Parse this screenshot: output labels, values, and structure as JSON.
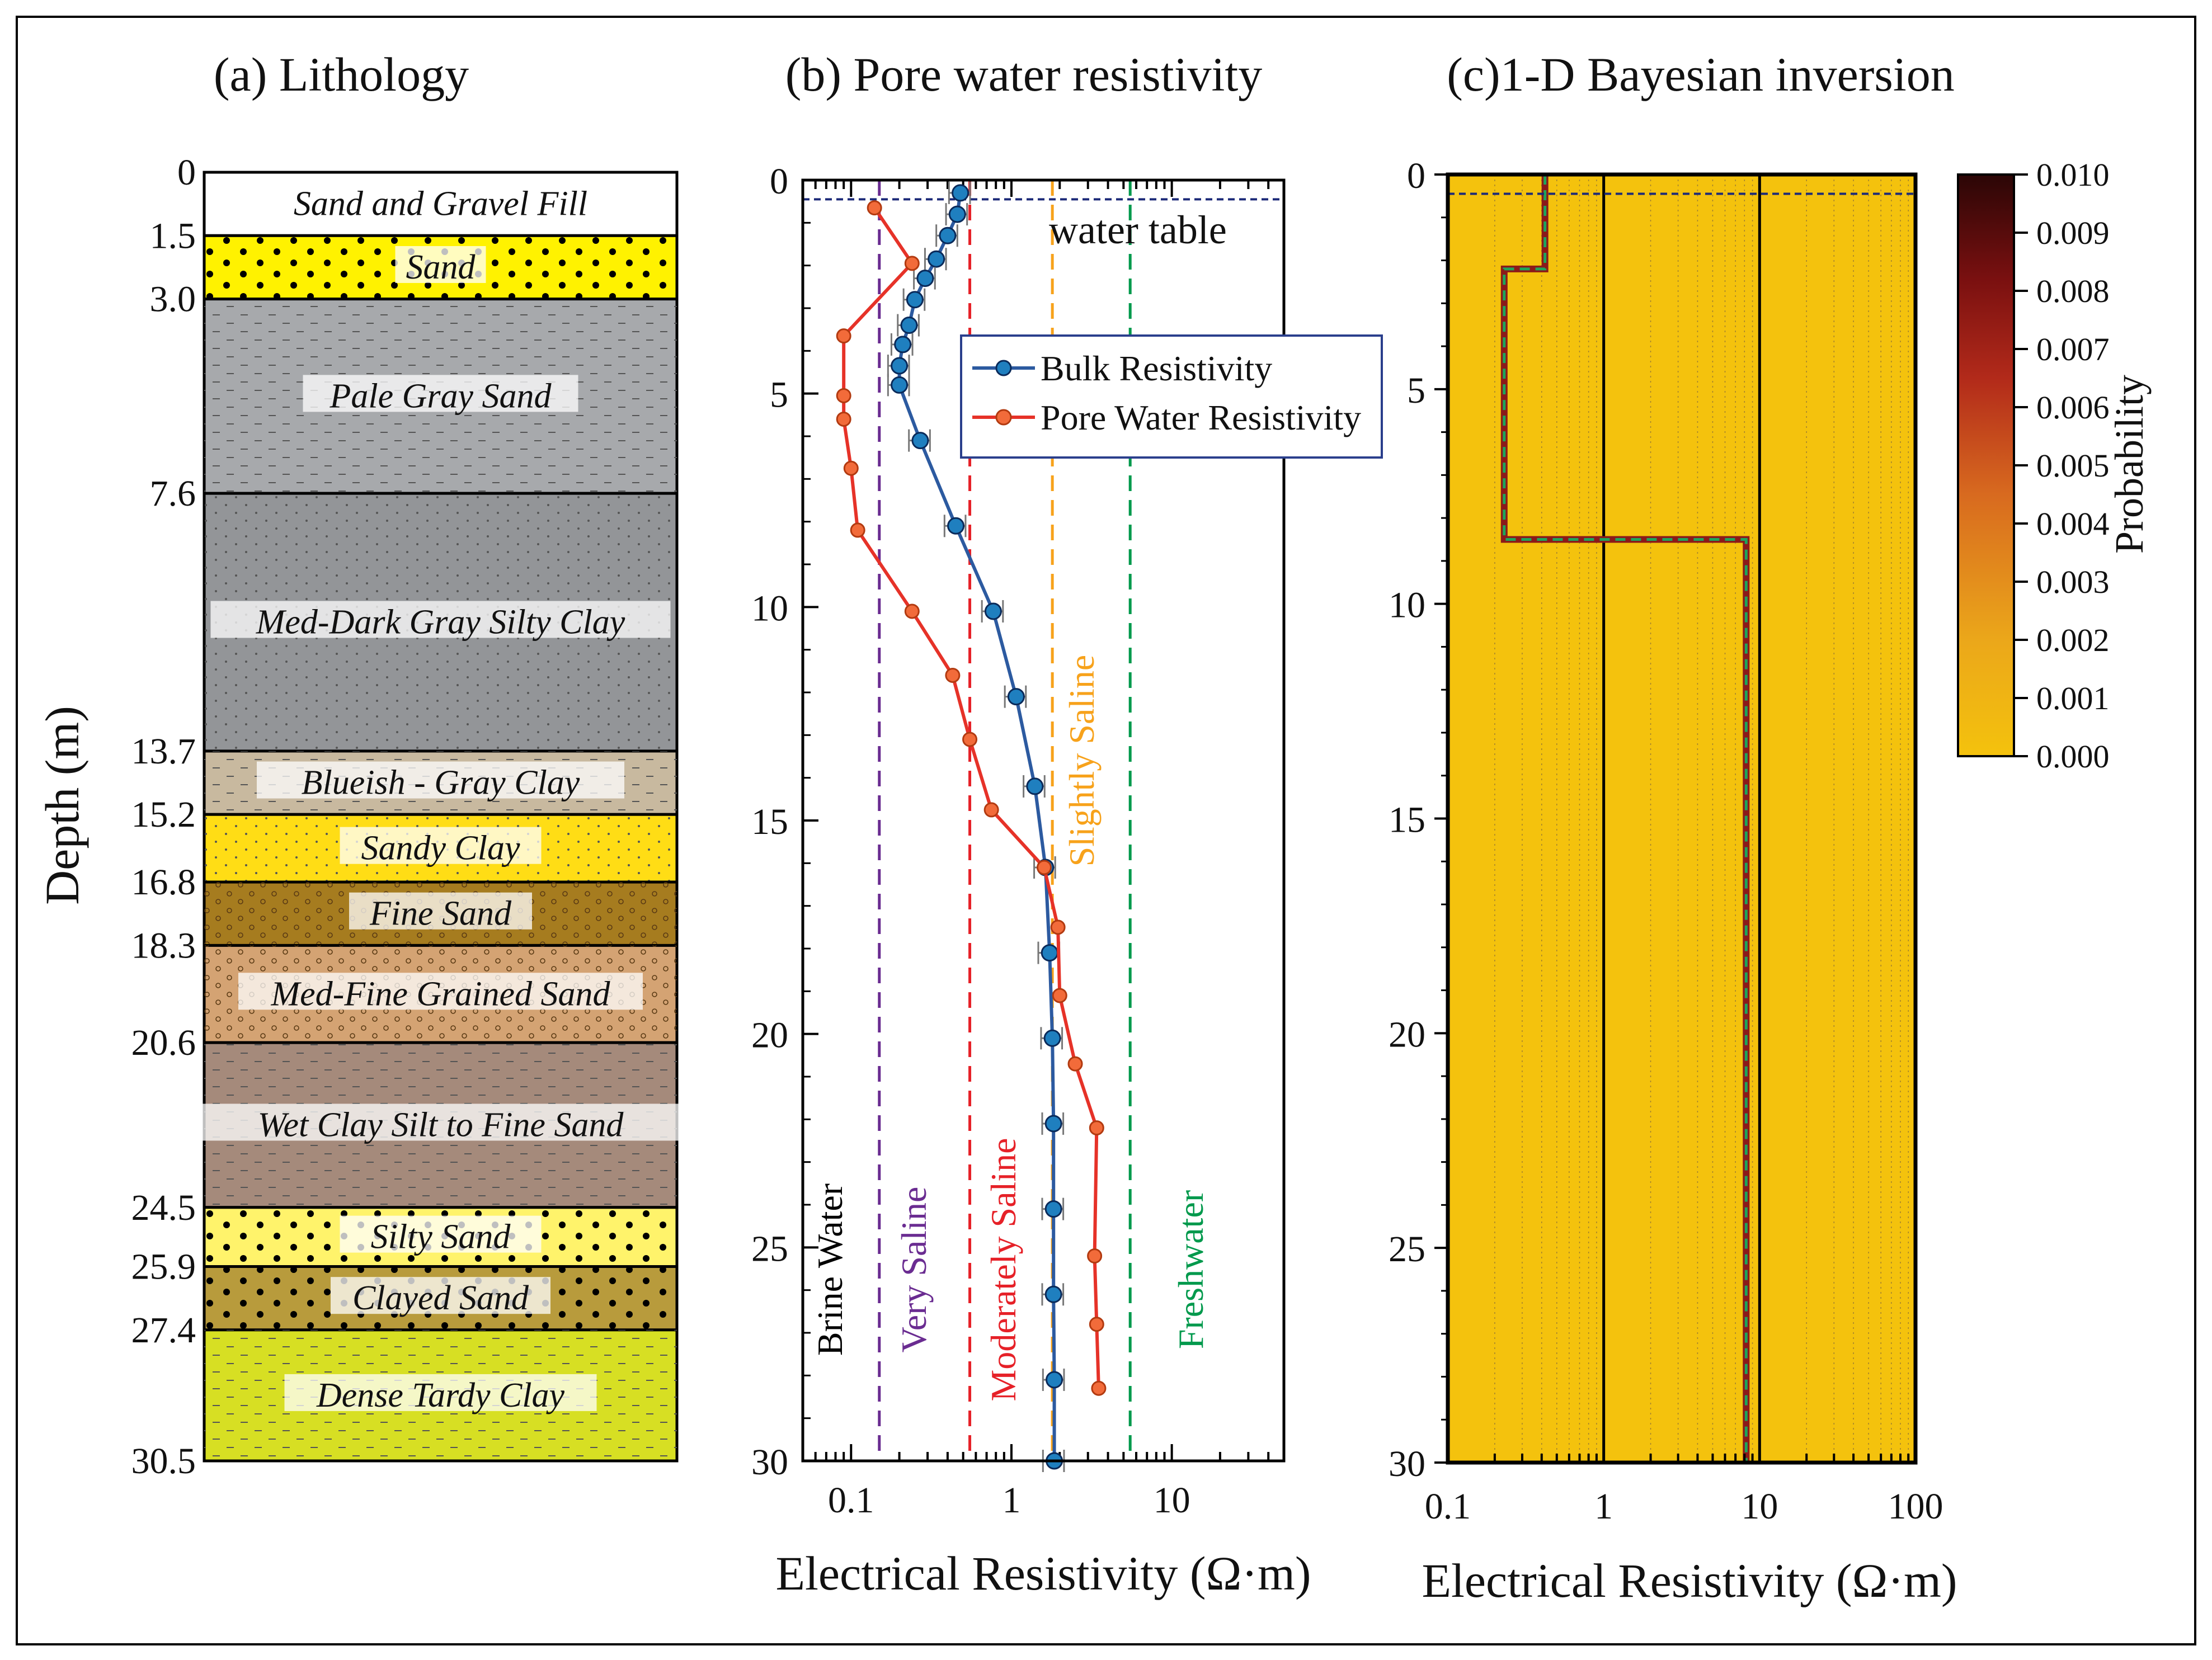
{
  "chart_data": [
    {
      "type": "lithology-column",
      "title": "(a) Lithology",
      "ylabel": "Depth (m)",
      "ylim": [
        0,
        30.5
      ],
      "depth_ticks": [
        "0",
        "1.5",
        "3.0",
        "7.6",
        "13.7",
        "15.2",
        "16.8",
        "18.3",
        "20.6",
        "24.5",
        "25.9",
        "27.4",
        "30.5"
      ],
      "layers": [
        {
          "top": 0,
          "bottom": 1.5,
          "name": "Sand and Gravel Fill",
          "color": "#ffffff",
          "pattern": "none"
        },
        {
          "top": 1.5,
          "bottom": 3.0,
          "name": "Sand",
          "color": "#fff200",
          "pattern": "bigdots"
        },
        {
          "top": 3.0,
          "bottom": 7.6,
          "name": "Pale Gray Sand",
          "color": "#a7a9ac",
          "pattern": "dash"
        },
        {
          "top": 7.6,
          "bottom": 13.7,
          "name": "Med-Dark Gray Silty Clay",
          "color": "#939598",
          "pattern": "dots"
        },
        {
          "top": 13.7,
          "bottom": 15.2,
          "name": "Blueish - Gray Clay",
          "color": "#c8b99f",
          "pattern": "dash"
        },
        {
          "top": 15.2,
          "bottom": 16.8,
          "name": "Sandy Clay",
          "color": "#ffdd15",
          "pattern": "dots"
        },
        {
          "top": 16.8,
          "bottom": 18.3,
          "name": "Fine Sand",
          "color": "#a67c1f",
          "pattern": "circles"
        },
        {
          "top": 18.3,
          "bottom": 20.6,
          "name": "Med-Fine Grained Sand",
          "color": "#d4a373",
          "pattern": "circles"
        },
        {
          "top": 20.6,
          "bottom": 24.5,
          "name": "Wet Clay Silt to Fine Sand",
          "color": "#a58a7b",
          "pattern": "dash"
        },
        {
          "top": 24.5,
          "bottom": 25.9,
          "name": "Silty Sand",
          "color": "#fff36b",
          "pattern": "bigdots"
        },
        {
          "top": 25.9,
          "bottom": 27.4,
          "name": "Clayed Sand",
          "color": "#b89b3c",
          "pattern": "bigdots"
        },
        {
          "top": 27.4,
          "bottom": 30.5,
          "name": "Dense Tardy Clay",
          "color": "#d7df23",
          "pattern": "dash"
        }
      ]
    },
    {
      "type": "line",
      "title": "(b) Pore water resistivity",
      "xlabel": "Electrical Resistivity (Ω·m)",
      "xscale": "log",
      "xlim": [
        0.05,
        50
      ],
      "ylim": [
        0,
        30
      ],
      "y_inverted": true,
      "x_ticks": [
        0.1,
        1,
        10
      ],
      "x_tick_labels": [
        "0.1",
        "1",
        "10"
      ],
      "y_ticks": [
        0,
        5,
        10,
        15,
        20,
        25,
        30
      ],
      "y_tick_labels": [
        "0",
        "5",
        "10",
        "15",
        "20",
        "25",
        "30"
      ],
      "water_table_depth": 0.45,
      "water_table_label": "water table",
      "legend": [
        "Bulk Resistivity",
        "Pore Water Resistivity"
      ],
      "series": [
        {
          "name": "Bulk Resistivity",
          "color": "#2c5aa0",
          "marker_color": "#1f7fbf",
          "depth": [
            0.3,
            0.8,
            1.3,
            1.85,
            2.3,
            2.8,
            3.4,
            3.85,
            4.35,
            4.8,
            6.1,
            8.1,
            10.1,
            12.1,
            14.2,
            16.1,
            18.1,
            20.1,
            22.1,
            24.1,
            26.1,
            28.1,
            30.0
          ],
          "x": [
            0.48,
            0.46,
            0.4,
            0.34,
            0.29,
            0.25,
            0.23,
            0.21,
            0.2,
            0.2,
            0.27,
            0.45,
            0.77,
            1.07,
            1.4,
            1.63,
            1.73,
            1.8,
            1.83,
            1.83,
            1.83,
            1.85,
            1.85
          ],
          "xerr_frac": 0.15
        },
        {
          "name": "Pore Water Resistivity",
          "color": "#e63228",
          "marker_color": "#f26b3a",
          "depth": [
            0.65,
            1.95,
            3.65,
            5.05,
            5.6,
            6.75,
            8.2,
            10.1,
            11.6,
            13.1,
            14.75,
            16.1,
            17.5,
            19.1,
            20.7,
            22.2,
            25.2,
            26.8,
            28.3
          ],
          "x": [
            0.14,
            0.24,
            0.09,
            0.09,
            0.09,
            0.1,
            0.11,
            0.24,
            0.43,
            0.55,
            0.75,
            1.6,
            1.95,
            2.0,
            2.5,
            3.4,
            3.3,
            3.4,
            3.5
          ]
        }
      ],
      "thresholds": [
        {
          "label": "Brine Water",
          "x": null,
          "color": "#000000"
        },
        {
          "label": "Very Saline",
          "x": 0.15,
          "color": "#6a2c91"
        },
        {
          "label": "Moderately Saline",
          "x": 0.55,
          "color": "#e62128"
        },
        {
          "label": "Slightly Saline",
          "x": 1.8,
          "color": "#f7a21b"
        },
        {
          "label": "Freshwater",
          "x": 5.5,
          "color": "#00994c"
        }
      ]
    },
    {
      "type": "heatmap",
      "title": "(c)1-D Bayesian inversion",
      "xlabel": "Electrical Resistivity (Ω·m)",
      "xscale": "log",
      "xlim": [
        0.1,
        100
      ],
      "ylim": [
        0,
        30
      ],
      "y_inverted": true,
      "x_ticks": [
        0.1,
        1,
        10,
        100
      ],
      "x_tick_labels": [
        "0.1",
        "1",
        "10",
        "100"
      ],
      "y_ticks": [
        0,
        5,
        10,
        15,
        20,
        25,
        30
      ],
      "y_tick_labels": [
        "0",
        "5",
        "10",
        "15",
        "20",
        "25",
        "30"
      ],
      "water_table_depth": 0.45,
      "colorbar": {
        "label": "Probability",
        "min": 0.0,
        "max": 0.01,
        "ticks": [
          "0.000",
          "0.001",
          "0.002",
          "0.003",
          "0.004",
          "0.005",
          "0.006",
          "0.007",
          "0.008",
          "0.009",
          "0.010"
        ],
        "colors": [
          "#f4c20d",
          "#e8a21a",
          "#d2691e",
          "#b03018",
          "#7a1010",
          "#3d0a0a"
        ]
      },
      "profile": {
        "depth": [
          0,
          2.2,
          2.2,
          8.5,
          8.5,
          30
        ],
        "x": [
          0.42,
          0.42,
          0.23,
          0.23,
          8.2,
          8.2
        ],
        "line_color": "#1fa55a",
        "inner_color": "#8b1a1a"
      }
    }
  ]
}
